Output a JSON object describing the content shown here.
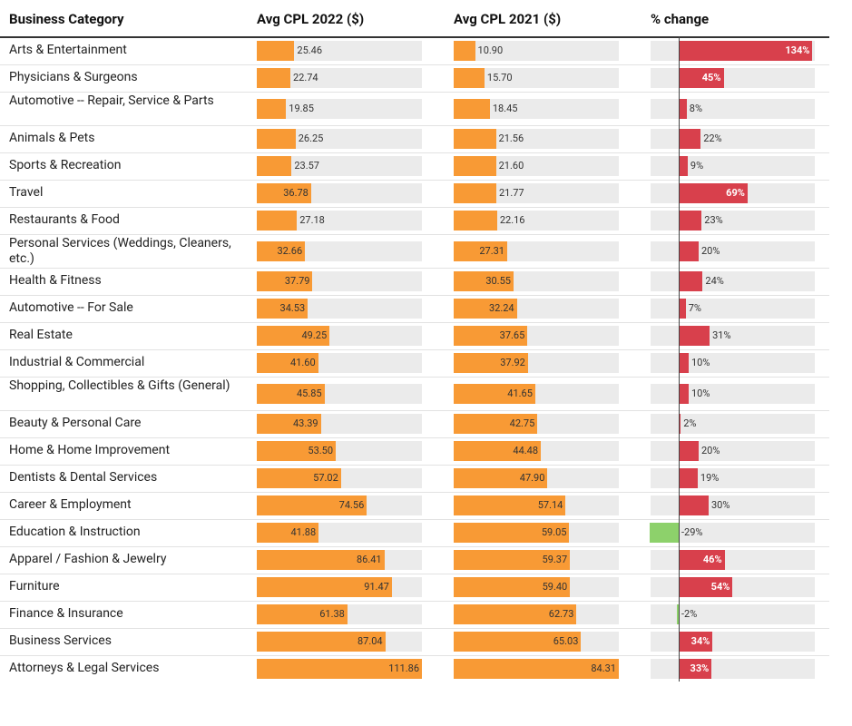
{
  "headers": {
    "category": "Business Category",
    "cpl2022": "Avg CPL 2022 ($)",
    "cpl2021": "Avg CPL 2021 ($)",
    "change": "% change"
  },
  "colors": {
    "cpl_bar": "#f89a35",
    "increase": "#d8404c",
    "decrease": "#8dd16b",
    "track": "#ebebeb"
  },
  "chart_data": {
    "type": "table",
    "columns": [
      "Business Category",
      "Avg CPL 2022 ($)",
      "Avg CPL 2021 ($)",
      "% change"
    ],
    "rows": [
      {
        "category": "Arts & Entertainment",
        "cpl2022": 25.46,
        "cpl2021": 10.9,
        "change": 134,
        "label2022": "25.46",
        "label2021": "10.90",
        "change_label": "134%"
      },
      {
        "category": "Physicians & Surgeons",
        "cpl2022": 22.74,
        "cpl2021": 15.7,
        "change": 45,
        "label2022": "22.74",
        "label2021": "15.70",
        "change_label": "45%"
      },
      {
        "category": "Automotive -- Repair, Service & Parts",
        "cpl2022": 19.85,
        "cpl2021": 18.45,
        "change": 8,
        "label2022": "19.85",
        "label2021": "18.45",
        "change_label": "8%"
      },
      {
        "category": "Animals & Pets",
        "cpl2022": 26.25,
        "cpl2021": 21.56,
        "change": 22,
        "label2022": "26.25",
        "label2021": "21.56",
        "change_label": "22%"
      },
      {
        "category": "Sports & Recreation",
        "cpl2022": 23.57,
        "cpl2021": 21.6,
        "change": 9,
        "label2022": "23.57",
        "label2021": "21.60",
        "change_label": "9%"
      },
      {
        "category": "Travel",
        "cpl2022": 36.78,
        "cpl2021": 21.77,
        "change": 69,
        "label2022": "36.78",
        "label2021": "21.77",
        "change_label": "69%"
      },
      {
        "category": "Restaurants & Food",
        "cpl2022": 27.18,
        "cpl2021": 22.16,
        "change": 23,
        "label2022": "27.18",
        "label2021": "22.16",
        "change_label": "23%"
      },
      {
        "category": "Personal Services (Weddings, Cleaners, etc.)",
        "cpl2022": 32.66,
        "cpl2021": 27.31,
        "change": 20,
        "label2022": "32.66",
        "label2021": "27.31",
        "change_label": "20%"
      },
      {
        "category": "Health & Fitness",
        "cpl2022": 37.79,
        "cpl2021": 30.55,
        "change": 24,
        "label2022": "37.79",
        "label2021": "30.55",
        "change_label": "24%"
      },
      {
        "category": "Automotive -- For Sale",
        "cpl2022": 34.53,
        "cpl2021": 32.24,
        "change": 7,
        "label2022": "34.53",
        "label2021": "32.24",
        "change_label": "7%"
      },
      {
        "category": "Real Estate",
        "cpl2022": 49.25,
        "cpl2021": 37.65,
        "change": 31,
        "label2022": "49.25",
        "label2021": "37.65",
        "change_label": "31%"
      },
      {
        "category": "Industrial & Commercial",
        "cpl2022": 41.6,
        "cpl2021": 37.92,
        "change": 10,
        "label2022": "41.60",
        "label2021": "37.92",
        "change_label": "10%"
      },
      {
        "category": "Shopping, Collectibles & Gifts (General)",
        "cpl2022": 45.85,
        "cpl2021": 41.65,
        "change": 10,
        "label2022": "45.85",
        "label2021": "41.65",
        "change_label": "10%"
      },
      {
        "category": "Beauty & Personal Care",
        "cpl2022": 43.39,
        "cpl2021": 42.75,
        "change": 2,
        "label2022": "43.39",
        "label2021": "42.75",
        "change_label": "2%"
      },
      {
        "category": "Home & Home Improvement",
        "cpl2022": 53.5,
        "cpl2021": 44.48,
        "change": 20,
        "label2022": "53.50",
        "label2021": "44.48",
        "change_label": "20%"
      },
      {
        "category": "Dentists & Dental Services",
        "cpl2022": 57.02,
        "cpl2021": 47.9,
        "change": 19,
        "label2022": "57.02",
        "label2021": "47.90",
        "change_label": "19%"
      },
      {
        "category": "Career & Employment",
        "cpl2022": 74.56,
        "cpl2021": 57.14,
        "change": 30,
        "label2022": "74.56",
        "label2021": "57.14",
        "change_label": "30%"
      },
      {
        "category": "Education & Instruction",
        "cpl2022": 41.88,
        "cpl2021": 59.05,
        "change": -29,
        "label2022": "41.88",
        "label2021": "59.05",
        "change_label": "-29%"
      },
      {
        "category": "Apparel / Fashion & Jewelry",
        "cpl2022": 86.41,
        "cpl2021": 59.37,
        "change": 46,
        "label2022": "86.41",
        "label2021": "59.37",
        "change_label": "46%"
      },
      {
        "category": "Furniture",
        "cpl2022": 91.47,
        "cpl2021": 59.4,
        "change": 54,
        "label2022": "91.47",
        "label2021": "59.40",
        "change_label": "54%"
      },
      {
        "category": "Finance & Insurance",
        "cpl2022": 61.38,
        "cpl2021": 62.73,
        "change": -2,
        "label2022": "61.38",
        "label2021": "62.73",
        "change_label": "-2%"
      },
      {
        "category": "Business Services",
        "cpl2022": 87.04,
        "cpl2021": 65.03,
        "change": 34,
        "label2022": "87.04",
        "label2021": "65.03",
        "change_label": "34%"
      },
      {
        "category": "Attorneys & Legal Services",
        "cpl2022": 111.86,
        "cpl2021": 84.31,
        "change": 33,
        "label2022": "111.86",
        "label2021": "84.31",
        "change_label": "33%"
      }
    ]
  }
}
